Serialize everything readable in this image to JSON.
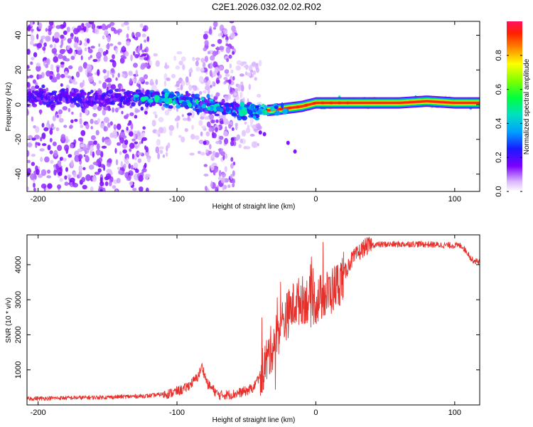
{
  "title": "C2E1.2026.032.02.02.R02",
  "chart_data": [
    {
      "type": "heatmap",
      "panel": "top",
      "xlabel": "Height of straight line (km)",
      "ylabel": "Frequency (Hz)",
      "xlim": [
        -208,
        118
      ],
      "ylim": [
        -50,
        48
      ],
      "xticks": [
        -200,
        -100,
        0,
        100
      ],
      "xtick_labels": [
        "-200",
        "-100",
        "0",
        "100"
      ],
      "yticks": [
        -40,
        -20,
        0,
        20,
        40
      ],
      "ytick_labels": [
        "-40",
        "-20",
        "0",
        "20",
        "40"
      ],
      "colorbar": {
        "label": "Normalized spectral amplitude",
        "range": [
          0,
          1
        ],
        "ticks": [
          0,
          0.2,
          0.4,
          0.6,
          0.8
        ],
        "tick_labels": [
          "0.0",
          "0.2",
          "0.4",
          "0.6",
          "0.8"
        ]
      },
      "ridge": {
        "description_points_x": [
          -140,
          -100,
          -80,
          -60,
          -45,
          -30,
          -10,
          0,
          20,
          40,
          60,
          80,
          100,
          118
        ],
        "center_frequency_hz": [
          4,
          3,
          0,
          -3,
          -4,
          -3,
          -1,
          1,
          1,
          1,
          1,
          2,
          1,
          1
        ],
        "peak_amplitude": [
          0.3,
          0.4,
          0.35,
          0.3,
          0.5,
          0.6,
          0.7,
          0.85,
          0.9,
          0.95,
          0.95,
          0.95,
          0.95,
          0.95
        ]
      }
    },
    {
      "type": "line",
      "panel": "bottom",
      "xlabel": "Height of straight line (km)",
      "ylabel": "SNR (10 * v/v)",
      "xlim": [
        -208,
        118
      ],
      "ylim": [
        0,
        4850
      ],
      "xticks": [
        -200,
        -100,
        0,
        100
      ],
      "xtick_labels": [
        "-200",
        "-100",
        "0",
        "100"
      ],
      "yticks": [
        1000,
        2000,
        3000,
        4000
      ],
      "ytick_labels": [
        "1000",
        "2000",
        "3000",
        "4000"
      ],
      "color": "#e8302b",
      "series": [
        {
          "name": "SNR",
          "x": [
            -208,
            -180,
            -150,
            -120,
            -105,
            -95,
            -90,
            -85,
            -82,
            -78,
            -70,
            -60,
            -50,
            -45,
            -40,
            -35,
            -30,
            -25,
            -20,
            -15,
            -10,
            -5,
            0,
            5,
            10,
            15,
            20,
            25,
            30,
            35,
            40,
            50,
            60,
            70,
            80,
            90,
            100,
            105,
            110,
            112,
            115,
            118
          ],
          "y": [
            180,
            200,
            220,
            260,
            330,
            450,
            600,
            800,
            1100,
            600,
            280,
            300,
            400,
            500,
            850,
            1300,
            1800,
            2300,
            2600,
            2900,
            3000,
            3000,
            2950,
            3100,
            3200,
            3400,
            3700,
            4100,
            4300,
            4500,
            4560,
            4580,
            4580,
            4590,
            4580,
            4560,
            4550,
            4540,
            4300,
            4150,
            4100,
            4100
          ]
        }
      ]
    }
  ]
}
